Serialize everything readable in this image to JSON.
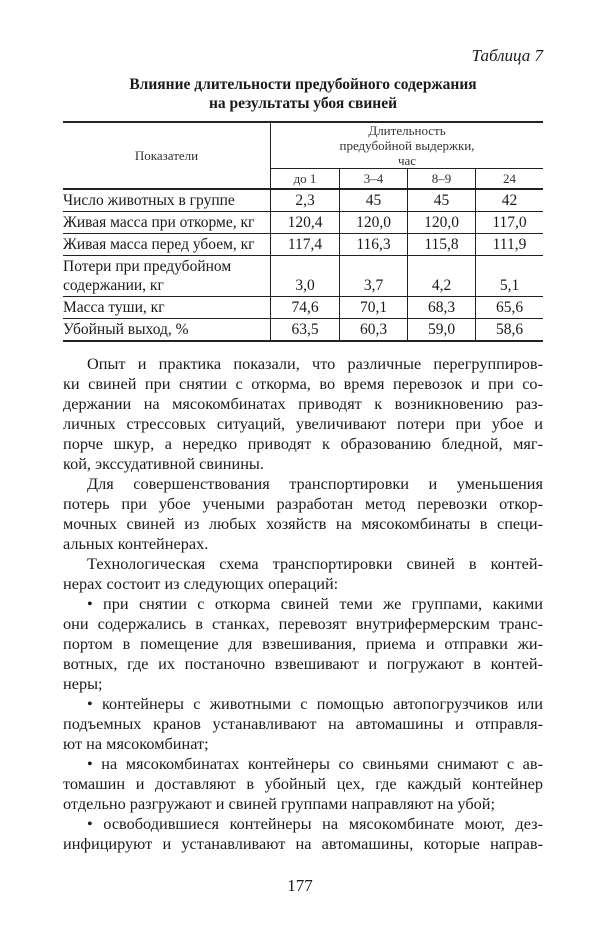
{
  "table_label": "Таблица 7",
  "table_title": [
    "Влияние длительности предубойного содержания",
    "на результаты убоя свиней"
  ],
  "table": {
    "header_indicator": "Показатели",
    "header_duration": "Длительность предубойной выдержки, час",
    "columns": [
      "до 1",
      "3–4",
      "8–9",
      "24"
    ],
    "rows": [
      {
        "label": "Число животных в группе",
        "values": [
          "2,3",
          "45",
          "45",
          "42"
        ]
      },
      {
        "label": "Живая масса при откорме, кг",
        "values": [
          "120,4",
          "120,0",
          "120,0",
          "117,0"
        ]
      },
      {
        "label": "Живая масса перед убоем, кг",
        "values": [
          "117,4",
          "116,3",
          "115,8",
          "111,9"
        ]
      },
      {
        "label": "Потери при предубойном содержании, кг",
        "values": [
          "3,0",
          "3,7",
          "4,2",
          "5,1"
        ]
      },
      {
        "label": "Масса туши, кг",
        "values": [
          "74,6",
          "70,1",
          "68,3",
          "65,6"
        ]
      },
      {
        "label": "Убойный выход, %",
        "values": [
          "63,5",
          "60,3",
          "59,0",
          "58,6"
        ]
      }
    ]
  },
  "paragraphs": [
    [
      "Опыт и практика показали, что различные перегруппиров-",
      "ки свиней при снятии с откорма, во время перевозок и при со-",
      "держании на мясокомбинатах приводят к возникновению раз-",
      "личных стрессовых ситуаций, увеличивают потери при убое и",
      "порче шкур, а нередко приводят к образованию бледной, мяг-",
      "кой, экссудативной свинины."
    ],
    [
      "Для совершенствования транспортировки и уменьшения",
      "потерь при убое учеными разработан метод перевозки откор-",
      "мочных свиней из любых хозяйств на мясокомбинаты в специ-",
      "альных контейнерах."
    ],
    [
      "Технологическая схема транспортировки свиней в контей-",
      "нерах состоит из следующих операций:"
    ],
    [
      "• при снятии с откорма свиней теми же группами, какими",
      "они содержались в станках, перевозят внутрифермерским транс-",
      "портом в помещение для взвешивания, приема и отправки жи-",
      "вотных, где их постаночно взвешивают и погружают в контей-",
      "неры;"
    ],
    [
      "• контейнеры с животными с помощью автопогрузчиков или",
      "подъемных кранов устанавливают на автомашины и отправля-",
      "ют на мясокомбинат;"
    ],
    [
      "• на мясокомбинатах контейнеры со свиньями снимают с ав-",
      "томашин и доставляют в убойный цех, где каждый контейнер",
      "отдельно разгружают и свиней группами направляют на убой;"
    ],
    [
      "• освободившиеся контейнеры на мясокомбинате моют, дез-",
      "инфицируют и устанавливают на автомашины, которые направ-"
    ]
  ],
  "page_number": "177"
}
